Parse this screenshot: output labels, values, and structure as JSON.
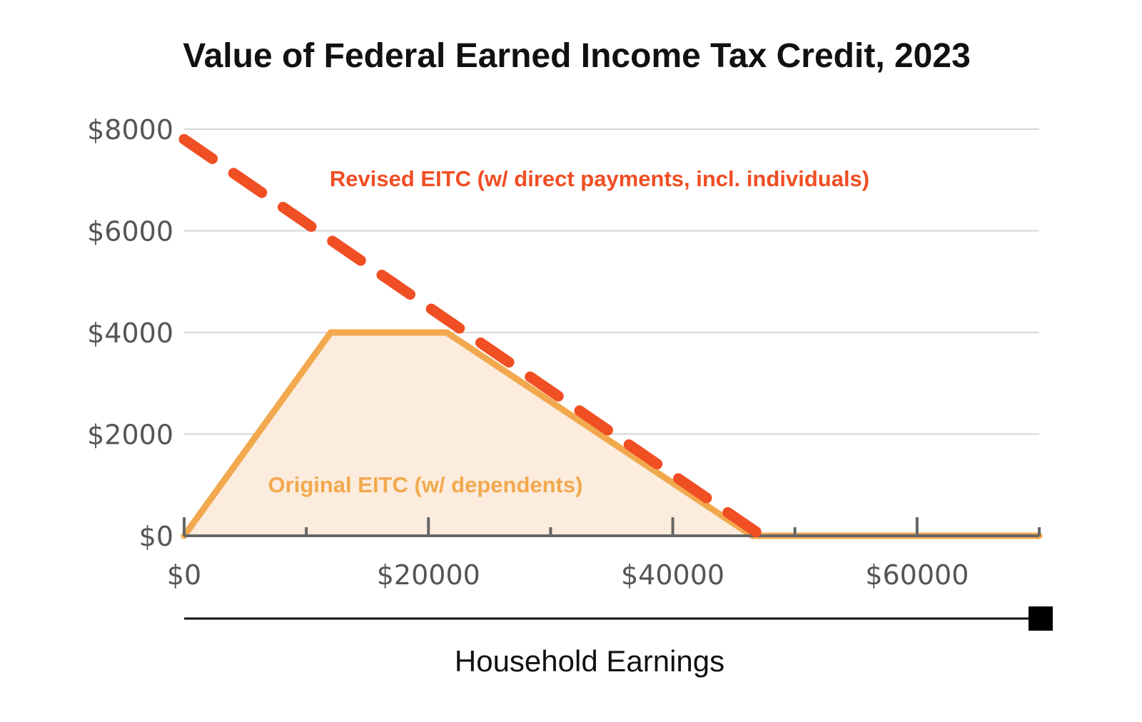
{
  "chart_data": {
    "type": "area",
    "title": "Value of Federal Earned Income Tax Credit, 2023",
    "xlabel": "Household Earnings",
    "ylabel": "",
    "xlim": [
      0,
      70000
    ],
    "ylim": [
      0,
      8000
    ],
    "x_ticks": [
      0,
      20000,
      40000,
      60000
    ],
    "x_tick_labels": [
      "$0",
      "$20000",
      "$40000",
      "$60000"
    ],
    "x_minor_ticks": [
      10000,
      30000,
      50000,
      70000
    ],
    "y_ticks": [
      0,
      2000,
      4000,
      6000,
      8000
    ],
    "y_tick_labels": [
      "$0",
      "$2000",
      "$4000",
      "$6000",
      "$8000"
    ],
    "grid": "horizontal",
    "series": [
      {
        "name": "Original EITC (w/ dependents)",
        "style": "solid-filled",
        "color": "#F2A94E",
        "fill_color": "#FBECDD",
        "x": [
          0,
          12000,
          21500,
          46500,
          70000
        ],
        "values": [
          0,
          4000,
          4000,
          0,
          0
        ]
      },
      {
        "name": "Revised EITC (w/ direct payments, incl. individuals)",
        "style": "dashed",
        "color": "#F04E23",
        "x": [
          0,
          48500
        ],
        "values": [
          7800,
          -200
        ]
      }
    ],
    "annotations": [
      {
        "text": "Revised EITC (w/ direct payments, incl. individuals)",
        "series": 1
      },
      {
        "text": "Original EITC (w/ dependents)",
        "series": 0
      }
    ],
    "range_slider": {
      "from": 0,
      "to": 70000
    }
  }
}
